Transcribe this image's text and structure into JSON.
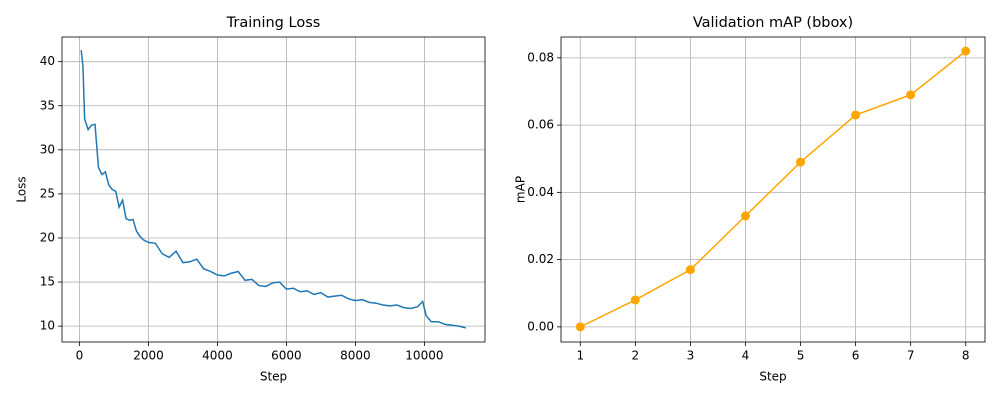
{
  "chart_data": [
    {
      "type": "line",
      "title": "Training Loss",
      "x_label": "Step",
      "y_label": "Loss",
      "x": [
        50,
        100,
        150,
        250,
        350,
        450,
        550,
        650,
        750,
        850,
        950,
        1050,
        1150,
        1250,
        1350,
        1450,
        1550,
        1650,
        1750,
        1850,
        2000,
        2200,
        2400,
        2600,
        2800,
        3000,
        3200,
        3400,
        3600,
        3800,
        4000,
        4200,
        4400,
        4600,
        4800,
        5000,
        5200,
        5400,
        5600,
        5800,
        6000,
        6200,
        6400,
        6600,
        6800,
        7000,
        7200,
        7400,
        7600,
        7800,
        8000,
        8200,
        8400,
        8600,
        8800,
        9000,
        9200,
        9400,
        9600,
        9800,
        9950,
        10050,
        10200,
        10400,
        10600,
        10800,
        11000,
        11200
      ],
      "series": [
        {
          "name": "Loss",
          "color": "#1f77b4",
          "markers": false,
          "values": [
            41.3,
            39.5,
            33.5,
            32.3,
            32.8,
            32.9,
            28.0,
            27.2,
            27.5,
            26.0,
            25.5,
            25.3,
            23.5,
            24.3,
            22.2,
            22.0,
            22.1,
            20.8,
            20.2,
            19.8,
            19.5,
            19.4,
            18.2,
            17.8,
            18.5,
            17.2,
            17.3,
            17.6,
            16.5,
            16.2,
            15.8,
            15.7,
            16.0,
            16.2,
            15.2,
            15.3,
            14.6,
            14.5,
            14.9,
            15.0,
            14.2,
            14.3,
            13.9,
            14.0,
            13.6,
            13.8,
            13.3,
            13.4,
            13.5,
            13.1,
            12.9,
            13.0,
            12.7,
            12.6,
            12.4,
            12.3,
            12.4,
            12.1,
            12.0,
            12.2,
            12.8,
            11.2,
            10.5,
            10.5,
            10.2,
            10.1,
            10.0,
            9.8
          ]
        }
      ],
      "xlim": [
        -507,
        11757
      ],
      "xticks": [
        0,
        2000,
        4000,
        6000,
        8000,
        10000
      ],
      "ylim": [
        8.2,
        42.8
      ],
      "yticks": [
        10,
        15,
        20,
        25,
        30,
        35,
        40
      ],
      "grid": true
    },
    {
      "type": "line",
      "title": "Validation mAP (bbox)",
      "x_label": "Step",
      "y_label": "mAP",
      "x": [
        1,
        2,
        3,
        4,
        5,
        6,
        7,
        8
      ],
      "series": [
        {
          "name": "mAP",
          "color": "#ffa500",
          "markers": true,
          "values": [
            0.0,
            0.008,
            0.017,
            0.033,
            0.049,
            0.063,
            0.069,
            0.082
          ]
        }
      ],
      "xlim": [
        0.65,
        8.35
      ],
      "xticks": [
        1,
        2,
        3,
        4,
        5,
        6,
        7,
        8
      ],
      "ylim": [
        -0.0045,
        0.0862
      ],
      "yticks": [
        {
          "value": 0,
          "label": "0.00"
        },
        {
          "value": 0.02,
          "label": "0.02"
        },
        {
          "value": 0.04,
          "label": "0.04"
        },
        {
          "value": 0.06,
          "label": "0.06"
        },
        {
          "value": 0.08,
          "label": "0.08"
        }
      ],
      "grid": true
    }
  ]
}
